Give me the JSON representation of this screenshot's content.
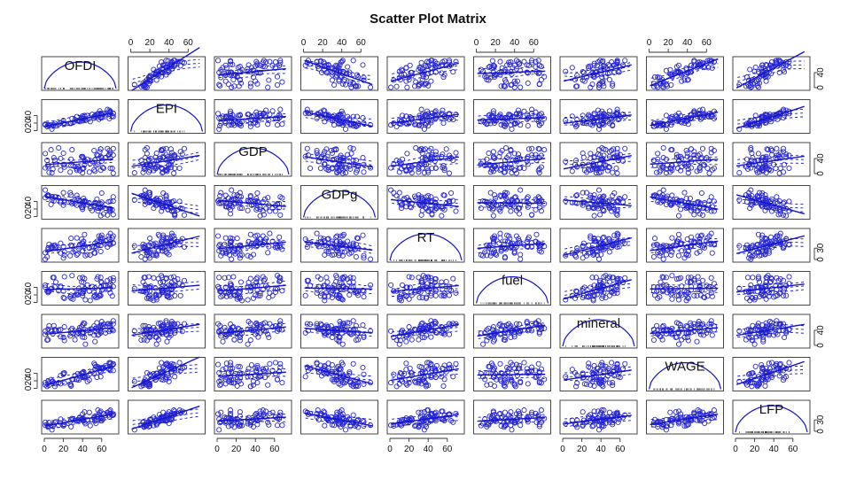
{
  "chart_data": {
    "type": "scatter",
    "title": "Scatter Plot Matrix",
    "variables": [
      "OFDI",
      "EPI",
      "GDP",
      "GDPg",
      "RT",
      "fuel",
      "mineral",
      "WAGE",
      "LFP"
    ],
    "axis_range": [
      0,
      75
    ],
    "top_x_ticks": [
      "0",
      "20",
      "40",
      "60"
    ],
    "bottom_x_ticks": [
      "0",
      "20",
      "40",
      "60"
    ],
    "left_y_ticks": [
      "0",
      "20",
      "40"
    ],
    "right_y_ticks": [
      "0",
      "30",
      "40"
    ],
    "n_points": 75,
    "point_color": "#2a2ad6",
    "line_color": "#1414c8",
    "points": {
      "OFDI": [
        60,
        47,
        27,
        10,
        53,
        21,
        69,
        15,
        59,
        34,
        8,
        3,
        20,
        12,
        40,
        69,
        43,
        72,
        54,
        45,
        56,
        36,
        64,
        37,
        56,
        41,
        58,
        52,
        40,
        68,
        9,
        28,
        1,
        59,
        72,
        48,
        66,
        32,
        68,
        53,
        59,
        42,
        4,
        72,
        29,
        30,
        41,
        39,
        17,
        1,
        50,
        7,
        35,
        57,
        42,
        59,
        28,
        17,
        34,
        4,
        52,
        61,
        55,
        40,
        5,
        41,
        11,
        60,
        21,
        71,
        69,
        62,
        67,
        20,
        40
      ],
      "EPI": [
        34,
        34,
        19,
        15,
        37,
        17,
        51,
        17,
        36,
        26,
        4,
        11,
        20,
        13,
        26,
        43,
        27,
        45,
        40,
        40,
        45,
        26,
        42,
        24,
        42,
        32,
        52,
        33,
        33,
        54,
        14,
        19,
        15,
        46,
        37,
        24,
        56,
        29,
        32,
        38,
        42,
        40,
        16,
        46,
        32,
        21,
        31,
        34,
        21,
        17,
        43,
        15,
        27,
        30,
        29,
        34,
        20,
        20,
        37,
        14,
        38,
        42,
        37,
        33,
        13,
        33,
        19,
        43,
        19,
        39,
        49,
        46,
        43,
        27,
        39
      ],
      "GDP": [
        42,
        4,
        4,
        42,
        36,
        24,
        14,
        68,
        9,
        13,
        2,
        35,
        24,
        25,
        43,
        55,
        32,
        1,
        22,
        38,
        48,
        15,
        42,
        8,
        24,
        15,
        58,
        61,
        2,
        51,
        12,
        38,
        15,
        45,
        66,
        26,
        66,
        18,
        61,
        6,
        65,
        24,
        23,
        49,
        63,
        21,
        41,
        45,
        40,
        53,
        32,
        63,
        19,
        40,
        35,
        65,
        21,
        9,
        9,
        18,
        10,
        16,
        50,
        12,
        3,
        14,
        35,
        33,
        17,
        14,
        41,
        14,
        48,
        54,
        45
      ],
      "GDPg": [
        62,
        35,
        63,
        41,
        30,
        37,
        40,
        49,
        26,
        30,
        44,
        55,
        63,
        52,
        38,
        14,
        41,
        41,
        36,
        32,
        15,
        45,
        22,
        41,
        22,
        30,
        22,
        29,
        35,
        21,
        49,
        39,
        70,
        2,
        52,
        22,
        4,
        35,
        14,
        37,
        24,
        38,
        54,
        5,
        34,
        40,
        48,
        25,
        42,
        50,
        16,
        32,
        48,
        35,
        42,
        34,
        57,
        37,
        56,
        57,
        26,
        26,
        46,
        24,
        55,
        35,
        52,
        38,
        43,
        18,
        18,
        7,
        39,
        30,
        19
      ],
      "RT": [
        64,
        30,
        10,
        37,
        43,
        11,
        39,
        27,
        21,
        12,
        36,
        7,
        4,
        33,
        43,
        69,
        10,
        62,
        31,
        13,
        40,
        34,
        49,
        40,
        38,
        48,
        48,
        32,
        23,
        55,
        30,
        38,
        1,
        54,
        43,
        12,
        33,
        23,
        41,
        17,
        37,
        36,
        26,
        44,
        35,
        20,
        34,
        54,
        43,
        18,
        34,
        31,
        15,
        62,
        66,
        59,
        56,
        17,
        57,
        30,
        17,
        55,
        48,
        22,
        40,
        48,
        38,
        47,
        20,
        57,
        47,
        44,
        62,
        34,
        43
      ],
      "fuel": [
        32,
        30,
        15,
        66,
        38,
        11,
        50,
        31,
        40,
        21,
        37,
        30,
        30,
        54,
        18,
        25,
        7,
        42,
        13,
        46,
        68,
        37,
        45,
        65,
        14,
        33,
        18,
        27,
        66,
        44,
        66,
        11,
        46,
        18,
        65,
        5,
        58,
        19,
        36,
        18,
        66,
        36,
        26,
        58,
        71,
        9,
        53,
        54,
        43,
        40,
        42,
        36,
        20,
        19,
        63,
        55,
        19,
        40,
        25,
        29,
        16,
        35,
        62,
        26,
        29,
        30,
        41,
        53,
        68,
        17,
        62,
        45,
        34,
        13,
        24
      ],
      "mineral": [
        54,
        40,
        25,
        52,
        40,
        13,
        41,
        41,
        36,
        36,
        38,
        14,
        21,
        39,
        22,
        57,
        3,
        57,
        45,
        40,
        43,
        40,
        33,
        47,
        27,
        34,
        49,
        51,
        35,
        37,
        31,
        41,
        38,
        33,
        65,
        32,
        57,
        15,
        51,
        10,
        53,
        21,
        43,
        39,
        45,
        32,
        59,
        49,
        42,
        29,
        43,
        38,
        33,
        29,
        58,
        43,
        33,
        23,
        29,
        15,
        27,
        48,
        60,
        31,
        52,
        35,
        42,
        63,
        49,
        42,
        57,
        56,
        57,
        21,
        54
      ],
      "WAGE": [
        55,
        22,
        11,
        15,
        62,
        41,
        68,
        15,
        53,
        23,
        18,
        5,
        37,
        12,
        29,
        65,
        31,
        63,
        58,
        18,
        51,
        22,
        60,
        33,
        57,
        44,
        47,
        39,
        41,
        53,
        18,
        9,
        15,
        31,
        65,
        39,
        56,
        34,
        68,
        50,
        44,
        28,
        19,
        47,
        24,
        24,
        43,
        40,
        34,
        9,
        44,
        23,
        39,
        54,
        31,
        44,
        6,
        12,
        24,
        14,
        66,
        53,
        29,
        41,
        8,
        30,
        5,
        52,
        14,
        61,
        47,
        53,
        51,
        40,
        33
      ],
      "LFP": [
        28,
        50,
        25,
        18,
        27,
        18,
        56,
        16,
        28,
        27,
        4,
        17,
        14,
        25,
        29,
        47,
        20,
        46,
        21,
        31,
        56,
        29,
        42,
        37,
        40,
        28,
        50,
        38,
        32,
        53,
        13,
        12,
        16,
        53,
        43,
        15,
        50,
        29,
        38,
        29,
        33,
        51,
        14,
        45,
        34,
        32,
        32,
        32,
        32,
        24,
        31,
        16,
        31,
        44,
        24,
        37,
        31,
        22,
        28,
        11,
        35,
        32,
        38,
        35,
        23,
        33,
        23,
        36,
        24,
        42,
        47,
        47,
        43,
        17,
        46
      ]
    }
  }
}
